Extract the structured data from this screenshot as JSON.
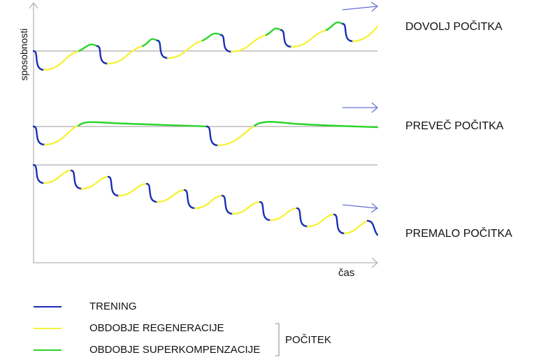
{
  "axes": {
    "y_label": "sposobnosti",
    "x_label": "čas"
  },
  "scenarios": {
    "enough": "DOVOLJ POČITKA",
    "too_much": "PREVEČ POČITKA",
    "too_little": "PREMALO POČITKA"
  },
  "legend": {
    "training": "TRENING",
    "regeneration": "OBDOBJE REGENERACIJE",
    "supercompensation": "OBDOBJE SUPERKOMPENZACIJE",
    "rest_group": "POČITEK"
  },
  "colors": {
    "training": "#1a2fb5",
    "regeneration": "#f5f23a",
    "supercompensation": "#2ad42a",
    "axis": "#b5b5b5",
    "arrow": "#6a72d8"
  }
}
